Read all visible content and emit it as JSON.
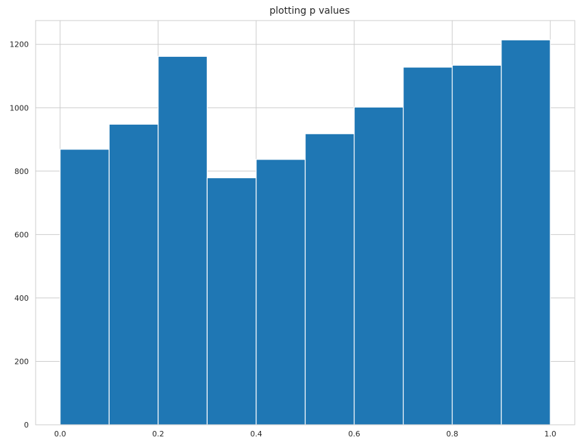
{
  "chart_data": {
    "type": "bar",
    "title": "plotting p values",
    "xlabel": "",
    "ylabel": "",
    "bin_edges": [
      0.0,
      0.1,
      0.2,
      0.3,
      0.4,
      0.5,
      0.6,
      0.7,
      0.8,
      0.9,
      1.0
    ],
    "values": [
      869,
      948,
      1162,
      779,
      837,
      918,
      1002,
      1128,
      1134,
      1214
    ],
    "xlim": [
      -0.05,
      1.05
    ],
    "ylim": [
      0,
      1275
    ],
    "xticks": [
      0.0,
      0.2,
      0.4,
      0.6,
      0.8,
      1.0
    ],
    "xtick_labels": [
      "0.0",
      "0.2",
      "0.4",
      "0.6",
      "0.8",
      "1.0"
    ],
    "yticks": [
      0,
      200,
      400,
      600,
      800,
      1000,
      1200
    ],
    "ytick_labels": [
      "0",
      "200",
      "400",
      "600",
      "800",
      "1000",
      "1200"
    ],
    "grid": true,
    "bar_color": "#1f77b4",
    "edge_color": "#ffffff",
    "grid_color": "#cccccc"
  }
}
